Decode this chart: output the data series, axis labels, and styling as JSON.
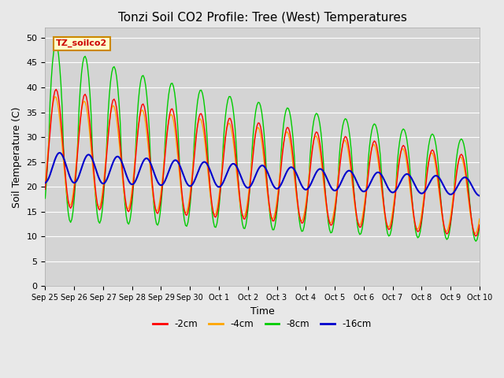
{
  "title": "Tonzi Soil CO2 Profile: Tree (West) Temperatures",
  "ylabel": "Soil Temperature (C)",
  "xlabel": "Time",
  "ylim": [
    0,
    52
  ],
  "yticks": [
    0,
    5,
    10,
    15,
    20,
    25,
    30,
    35,
    40,
    45,
    50
  ],
  "xtick_labels": [
    "Sep 25",
    "Sep 26",
    "Sep 27",
    "Sep 28",
    "Sep 29",
    "Sep 30",
    "Oct 1",
    "Oct 2",
    "Oct 3",
    "Oct 4",
    "Oct 5",
    "Oct 6",
    "Oct 7",
    "Oct 8",
    "Oct 9",
    "Oct 10"
  ],
  "legend_label": "TZ_soilco2",
  "series_labels": [
    "-2cm",
    "-4cm",
    "-8cm",
    "-16cm"
  ],
  "series_colors": [
    "#ff0000",
    "#ffa500",
    "#00cc00",
    "#0000cc"
  ],
  "background_color": "#e8e8e8",
  "plot_bg_color": "#d4d4d4",
  "grid_color": "#ffffff",
  "title_fontsize": 11,
  "axis_fontsize": 9,
  "tick_fontsize": 8
}
